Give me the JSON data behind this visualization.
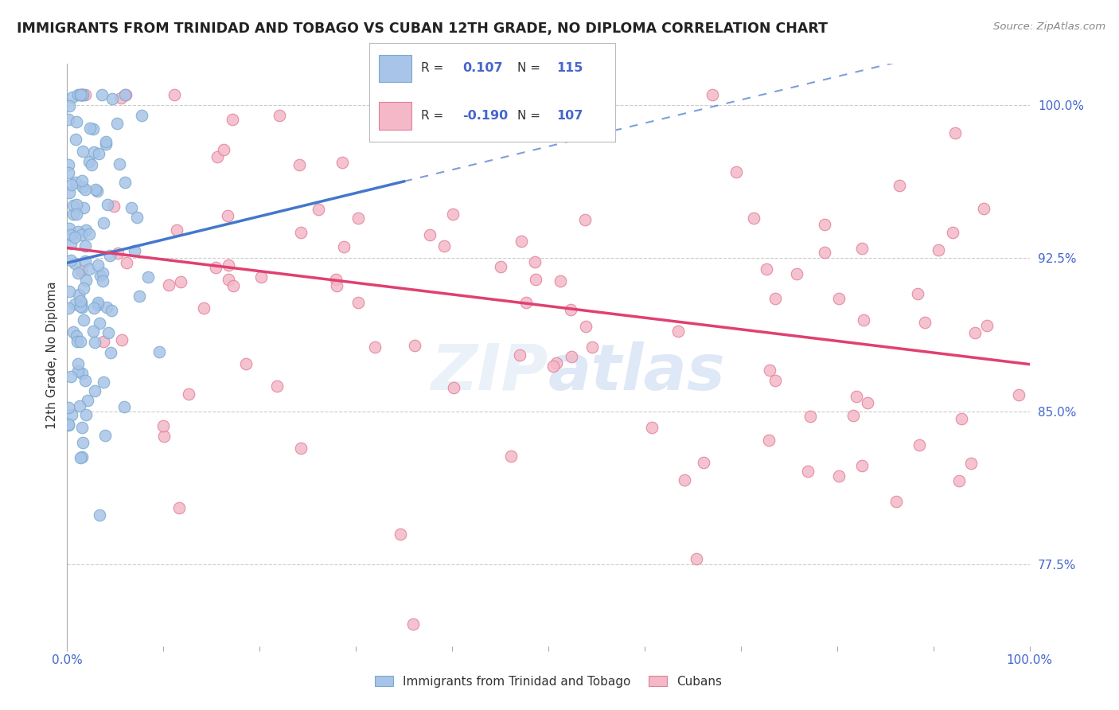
{
  "title": "IMMIGRANTS FROM TRINIDAD AND TOBAGO VS CUBAN 12TH GRADE, NO DIPLOMA CORRELATION CHART",
  "source": "Source: ZipAtlas.com",
  "legend_label_blue": "Immigrants from Trinidad and Tobago",
  "legend_label_pink": "Cubans",
  "blue_color": "#a8c4e8",
  "blue_edge_color": "#7aaace",
  "pink_color": "#f4b8c8",
  "pink_edge_color": "#e08098",
  "blue_line_color": "#4477cc",
  "pink_line_color": "#e04070",
  "title_color": "#222222",
  "axis_label_color": "#4466cc",
  "background_color": "#ffffff",
  "xmin": 0.0,
  "xmax": 1.0,
  "ymin": 0.735,
  "ymax": 1.02,
  "blue_r": 0.107,
  "blue_n": 115,
  "pink_r": -0.19,
  "pink_n": 107,
  "ylabel_label": "12th Grade, No Diploma",
  "y_ticks": [
    0.775,
    0.85,
    0.925,
    1.0
  ],
  "y_tick_labels": [
    "77.5%",
    "85.0%",
    "92.5%",
    "100.0%"
  ]
}
